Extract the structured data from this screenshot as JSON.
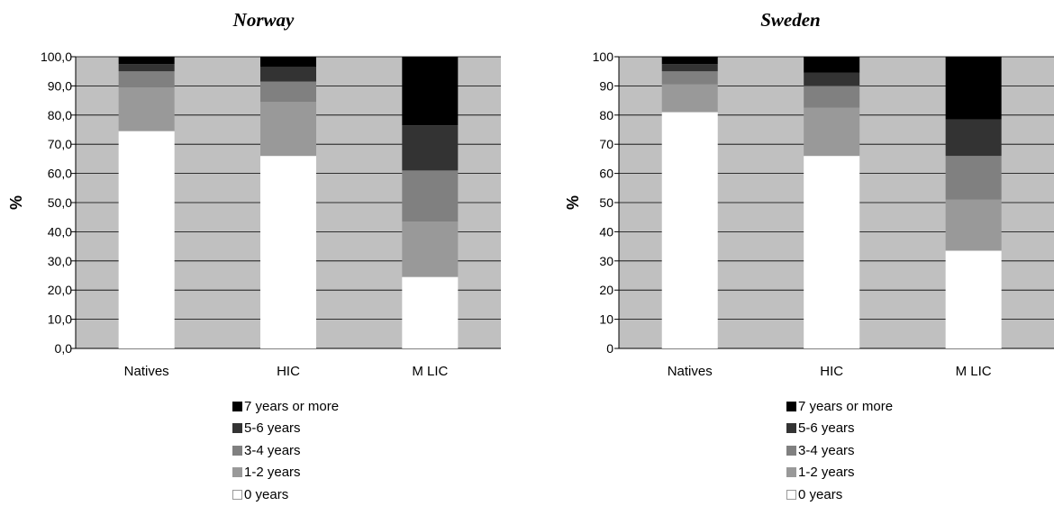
{
  "chart_data": [
    {
      "type": "bar",
      "stacked": true,
      "title": "Norway",
      "ylabel": "%",
      "ylim": [
        0,
        100
      ],
      "yticks": [
        "0,0",
        "10,0",
        "20,0",
        "30,0",
        "40,0",
        "50,0",
        "60,0",
        "70,0",
        "80,0",
        "90,0",
        "100,0"
      ],
      "categories": [
        "Natives",
        "HIC",
        "M LIC"
      ],
      "series": [
        {
          "name": "0 years",
          "color": "#ffffff",
          "values": [
            74.5,
            66.0,
            24.5
          ]
        },
        {
          "name": "1-2 years",
          "color": "#999999",
          "values": [
            15.0,
            18.5,
            19.0
          ]
        },
        {
          "name": "3-4 years",
          "color": "#808080",
          "values": [
            5.5,
            7.0,
            17.5
          ]
        },
        {
          "name": "5-6 years",
          "color": "#333333",
          "values": [
            2.5,
            5.0,
            15.5
          ]
        },
        {
          "name": "7 years or more",
          "color": "#000000",
          "values": [
            2.5,
            3.5,
            23.5
          ]
        }
      ],
      "grid": true,
      "plot_background": "#c0c0c0",
      "legend_position": "bottom"
    },
    {
      "type": "bar",
      "stacked": true,
      "title": "Sweden",
      "ylabel": "%",
      "ylim": [
        0,
        100
      ],
      "yticks": [
        "0",
        "10",
        "20",
        "30",
        "40",
        "50",
        "60",
        "70",
        "80",
        "90",
        "100"
      ],
      "categories": [
        "Natives",
        "HIC",
        "M LIC"
      ],
      "series": [
        {
          "name": "0 years",
          "color": "#ffffff",
          "values": [
            81.0,
            66.0,
            33.5
          ]
        },
        {
          "name": "1-2 years",
          "color": "#999999",
          "values": [
            9.5,
            16.5,
            17.5
          ]
        },
        {
          "name": "3-4 years",
          "color": "#808080",
          "values": [
            4.5,
            7.5,
            15.0
          ]
        },
        {
          "name": "5-6 years",
          "color": "#333333",
          "values": [
            2.5,
            4.5,
            12.5
          ]
        },
        {
          "name": "7 years or more",
          "color": "#000000",
          "values": [
            2.5,
            5.5,
            21.5
          ]
        }
      ],
      "grid": true,
      "plot_background": "#c0c0c0",
      "legend_position": "bottom"
    }
  ],
  "legend_display": {
    "left": [
      "7 years or more",
      "5-6 years",
      "3-4 years",
      "1-2 years",
      "0 years"
    ],
    "right": [
      "7 years or more",
      "5-6 years",
      "3-4 years",
      "1-2 years",
      "0 years"
    ]
  }
}
